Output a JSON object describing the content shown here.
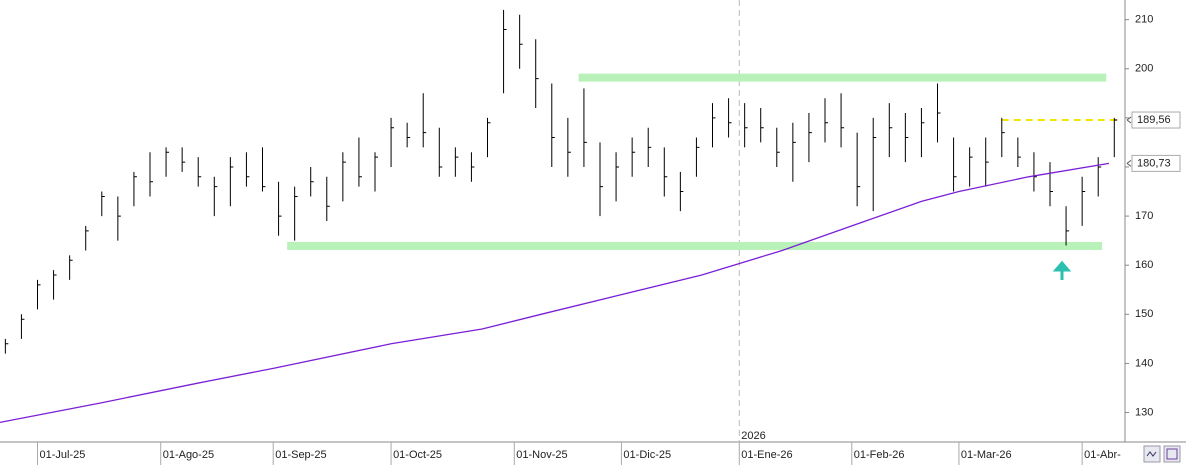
{
  "chart_data": {
    "type": "ohlc",
    "color": "#000000",
    "x": [
      -6,
      -3,
      0,
      3,
      6,
      9,
      12,
      15,
      18,
      21,
      24,
      27,
      30,
      33,
      36,
      39,
      42,
      45,
      48,
      51,
      54,
      57,
      60,
      63,
      66,
      69,
      72,
      75,
      78,
      81,
      84,
      87,
      90,
      93,
      96,
      99,
      102,
      105,
      108,
      111,
      114,
      117,
      120,
      123,
      126,
      129,
      132,
      135,
      138,
      141,
      144,
      147,
      150,
      153,
      156,
      159,
      162,
      165,
      168,
      171,
      174,
      177,
      180,
      183,
      186,
      189,
      192,
      195,
      198,
      201
    ],
    "high": [
      145,
      150,
      157,
      159,
      162,
      168,
      175,
      174,
      179,
      183,
      184,
      184,
      182,
      178,
      182,
      183,
      184,
      177,
      176,
      180,
      178,
      183,
      186,
      183,
      190,
      189,
      195,
      188,
      184,
      183,
      190,
      212,
      211,
      206,
      197,
      190,
      196,
      185,
      183,
      186,
      188,
      184,
      179,
      186,
      193,
      194,
      193,
      192,
      188,
      189,
      191,
      194,
      195,
      187,
      190,
      193,
      191,
      192,
      197,
      186,
      184,
      186,
      190,
      186,
      183,
      181,
      172,
      178,
      182,
      190
    ],
    "low": [
      142,
      145,
      151,
      153,
      157,
      163,
      170,
      165,
      172,
      174,
      178,
      179,
      176,
      170,
      172,
      176,
      175,
      166,
      165,
      174,
      169,
      173,
      176,
      175,
      180,
      184,
      184,
      178,
      178,
      177,
      182,
      195,
      200,
      192,
      180,
      178,
      180,
      170,
      173,
      178,
      180,
      174,
      171,
      178,
      184,
      186,
      184,
      185,
      180,
      177,
      181,
      185,
      184,
      172,
      171,
      182,
      181,
      182,
      185,
      175,
      176,
      176,
      182,
      180,
      175,
      172,
      164,
      168,
      174,
      182
    ],
    "close": [
      144,
      149,
      156,
      158,
      161,
      167,
      174,
      170,
      178,
      177,
      183,
      181,
      178,
      176,
      180,
      178,
      176,
      170,
      174,
      177,
      172,
      181,
      178,
      182,
      188,
      186,
      187,
      180,
      182,
      180,
      189,
      208,
      205,
      198,
      186,
      183,
      185,
      176,
      180,
      183,
      184,
      178,
      175,
      184,
      190,
      189,
      188,
      188,
      183,
      185,
      187,
      189,
      188,
      176,
      186,
      188,
      186,
      189,
      191,
      178,
      182,
      181,
      187,
      182,
      178,
      175,
      167,
      175,
      180,
      189.56
    ],
    "lines": [
      {
        "color": "#7b1fd6",
        "x": [
          -7,
          12,
          30,
          44,
          66,
          83,
          94,
          109,
          124,
          139,
          152,
          165,
          172,
          185,
          200
        ],
        "values": [
          128,
          132,
          136,
          139,
          144,
          147,
          150,
          154,
          158,
          163,
          168,
          173,
          175,
          178,
          180.73
        ]
      }
    ],
    "levels": [
      {
        "value": 198.2,
        "from": 101,
        "to": 199.5,
        "color": "#b8f2b8"
      },
      {
        "value": 163.9,
        "from": 46.6,
        "to": 198.7,
        "color": "#b8f2b8"
      },
      {
        "value": 189.56,
        "from": 180,
        "to": 202,
        "color": "#f2e600",
        "dashed": true
      }
    ],
    "price_labels": [
      {
        "value": 189.56,
        "label": "189,56"
      },
      {
        "value": 180.73,
        "label": "180,73"
      }
    ],
    "year_marker": {
      "value": 131,
      "label": "2026"
    },
    "xlim": [
      -7,
      203
    ],
    "ylim": [
      124,
      214
    ],
    "yticks": [
      130,
      140,
      150,
      160,
      170,
      180,
      190,
      200,
      210
    ],
    "xticks": [
      {
        "value": 0,
        "label": "01-Jul-25"
      },
      {
        "value": 23,
        "label": "01-Ago-25"
      },
      {
        "value": 44,
        "label": "01-Sep-25"
      },
      {
        "value": 66,
        "label": "01-Oct-25"
      },
      {
        "value": 89,
        "label": "01-Nov-25"
      },
      {
        "value": 109,
        "label": "01-Dic-25"
      },
      {
        "value": 131,
        "label": "01-Ene-26"
      },
      {
        "value": 152,
        "label": "01-Feb-26"
      },
      {
        "value": 172,
        "label": "01-Mar-26"
      },
      {
        "value": 195,
        "label": "01-Abr-"
      }
    ]
  }
}
